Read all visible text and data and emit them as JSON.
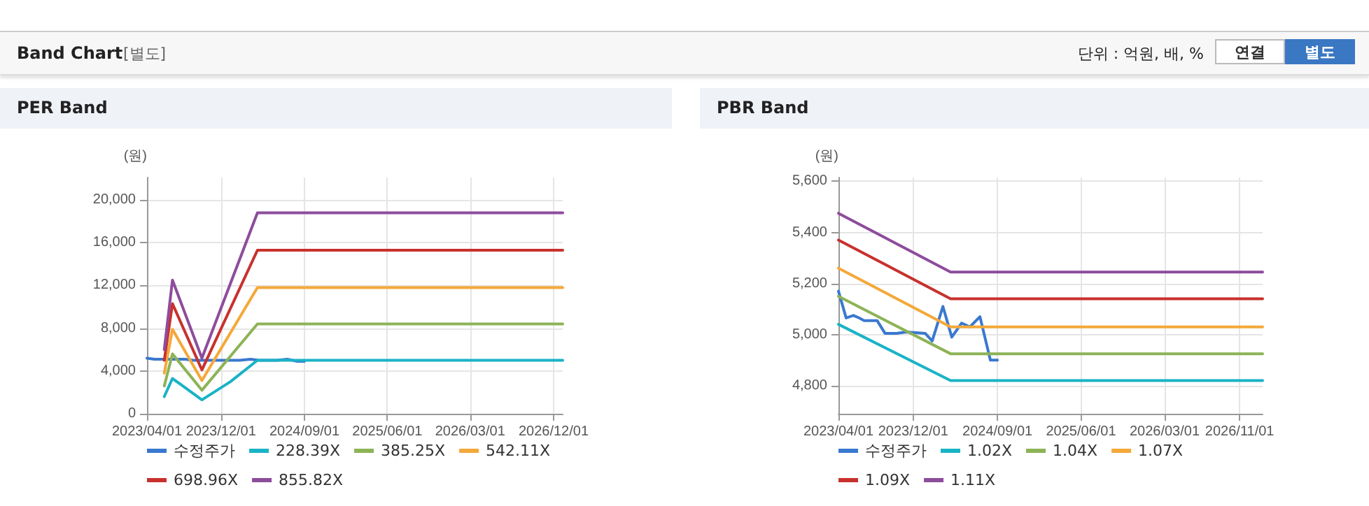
{
  "chart_data": [
    {
      "type": "line",
      "title": "PER Band",
      "ylabel": "(원)",
      "annotations": [
        "Band Chart",
        "[별도]",
        "단위 : 억원, 배, %",
        "연결",
        "별도"
      ],
      "xlim": [
        "2023-04-01",
        "2026-12-31"
      ],
      "xticks": [
        {
          "value": "2023-04-01",
          "label": "2023/04/01"
        },
        {
          "value": "2023-12-01",
          "label": "2023/12/01"
        },
        {
          "value": "2024-09-01",
          "label": "2024/09/01"
        },
        {
          "value": "2025-06-01",
          "label": "2025/06/01"
        },
        {
          "value": "2026-03-01",
          "label": "2026/03/01"
        },
        {
          "value": "2026-12-01",
          "label": "2026/12/01"
        }
      ],
      "ylim": [
        0,
        22100
      ],
      "yticks": [
        0,
        {
          "value": 4000,
          "label": "4,000"
        },
        {
          "value": 8000,
          "label": "8,000"
        },
        {
          "value": 12000,
          "label": "12,000"
        },
        {
          "value": 16000,
          "label": "16,000"
        },
        {
          "value": 20000,
          "label": "20,000"
        }
      ],
      "grid": true,
      "legend": "bottom",
      "marker": "none",
      "line_style": "solid",
      "series": [
        {
          "name": "수정주가",
          "color": "#3a78cf",
          "x": [
            "2023-04-01",
            "2023-04-26",
            "2023-05-20",
            "2023-06-08",
            "2023-06-23",
            "2023-08-05",
            "2023-08-31",
            "2023-10-08",
            "2023-11-08",
            "2024-01-09",
            "2024-02-01",
            "2024-03-07",
            "2024-04-05",
            "2024-05-07",
            "2024-06-03",
            "2024-07-06",
            "2024-08-09",
            "2024-09-01"
          ],
          "values": [
            5200,
            5100,
            5100,
            5100,
            5100,
            5100,
            5000,
            5000,
            5000,
            5000,
            5000,
            5100,
            5000,
            5000,
            5000,
            5100,
            4900,
            4900
          ]
        },
        {
          "name": "228.39X",
          "color": "#1ab3c6",
          "x": [
            "2023-05-28",
            "2023-06-24",
            "2023-09-29",
            "2024-01-01",
            "2024-03-30",
            "2026-12-31"
          ],
          "values": [
            1600,
            3300,
            1300,
            3000,
            5000,
            5000
          ]
        },
        {
          "name": "385.25X",
          "color": "#8db356",
          "x": [
            "2023-05-28",
            "2023-06-24",
            "2023-09-29",
            "2024-03-30",
            "2026-12-31"
          ],
          "values": [
            2600,
            5600,
            2200,
            8400,
            8400
          ]
        },
        {
          "name": "542.11X",
          "color": "#f4a83a",
          "x": [
            "2023-05-28",
            "2023-06-24",
            "2023-09-29",
            "2024-03-30",
            "2026-12-31"
          ],
          "values": [
            3800,
            7900,
            3100,
            11800,
            11800
          ]
        },
        {
          "name": "698.96X",
          "color": "#c8312d",
          "x": [
            "2023-05-28",
            "2023-06-24",
            "2023-09-29",
            "2024-03-30",
            "2026-12-31"
          ],
          "values": [
            5000,
            10300,
            4100,
            15300,
            15300
          ]
        },
        {
          "name": "855.82X",
          "color": "#8e4c9c",
          "x": [
            "2023-05-28",
            "2023-06-24",
            "2023-09-29",
            "2024-03-30",
            "2026-12-31"
          ],
          "values": [
            6000,
            12500,
            5200,
            18800,
            18800
          ]
        }
      ]
    },
    {
      "type": "line",
      "title": "PBR Band",
      "ylabel": "(원)",
      "xlim": [
        "2023-04-01",
        "2027-01-15"
      ],
      "xticks": [
        {
          "value": "2023-04-01",
          "label": "2023/04/01"
        },
        {
          "value": "2023-12-01",
          "label": "2023/12/01"
        },
        {
          "value": "2024-09-01",
          "label": "2024/09/01"
        },
        {
          "value": "2025-06-01",
          "label": "2025/06/01"
        },
        {
          "value": "2026-03-01",
          "label": "2026/03/01"
        },
        {
          "value": "2026-11-01",
          "label": "2026/11/01"
        }
      ],
      "ylim": [
        4690,
        5615
      ],
      "yticks": [
        {
          "value": 4800,
          "label": "4,800"
        },
        {
          "value": 5000,
          "label": "5,000"
        },
        {
          "value": 5200,
          "label": "5,200"
        },
        {
          "value": 5400,
          "label": "5,400"
        },
        {
          "value": 5600,
          "label": "5,600"
        }
      ],
      "grid": true,
      "legend": "bottom",
      "marker": "none",
      "line_style": "solid",
      "series": [
        {
          "name": "수정주가",
          "color": "#3a78cf",
          "x": [
            "2023-04-01",
            "2023-04-26",
            "2023-05-20",
            "2023-06-08",
            "2023-06-23",
            "2023-08-05",
            "2023-08-31",
            "2023-10-08",
            "2023-11-08",
            "2024-01-09",
            "2024-02-01",
            "2024-03-07",
            "2024-04-05",
            "2024-05-07",
            "2024-06-03",
            "2024-07-06",
            "2024-08-09",
            "2024-09-01"
          ],
          "values": [
            5170,
            5065,
            5075,
            5065,
            5055,
            5055,
            5005,
            5005,
            5010,
            5005,
            4975,
            5110,
            4990,
            5045,
            5030,
            5070,
            4900,
            4900
          ]
        },
        {
          "name": "1.02X",
          "color": "#1ab3c6",
          "x": [
            "2023-04-01",
            "2024-04-01",
            "2027-01-15"
          ],
          "values": [
            5040,
            4820,
            4820
          ]
        },
        {
          "name": "1.04X",
          "color": "#8db356",
          "x": [
            "2023-04-01",
            "2024-04-01",
            "2027-01-15"
          ],
          "values": [
            5150,
            4925,
            4925
          ]
        },
        {
          "name": "1.07X",
          "color": "#f4a83a",
          "x": [
            "2023-04-01",
            "2024-04-01",
            "2027-01-15"
          ],
          "values": [
            5260,
            5030,
            5030
          ]
        },
        {
          "name": "1.09X",
          "color": "#c8312d",
          "x": [
            "2023-04-01",
            "2024-04-01",
            "2027-01-15"
          ],
          "values": [
            5370,
            5140,
            5140
          ]
        },
        {
          "name": "1.11X",
          "color": "#8e4c9c",
          "x": [
            "2023-04-01",
            "2024-04-01",
            "2027-01-15"
          ],
          "values": [
            5475,
            5245,
            5245
          ]
        }
      ]
    }
  ]
}
